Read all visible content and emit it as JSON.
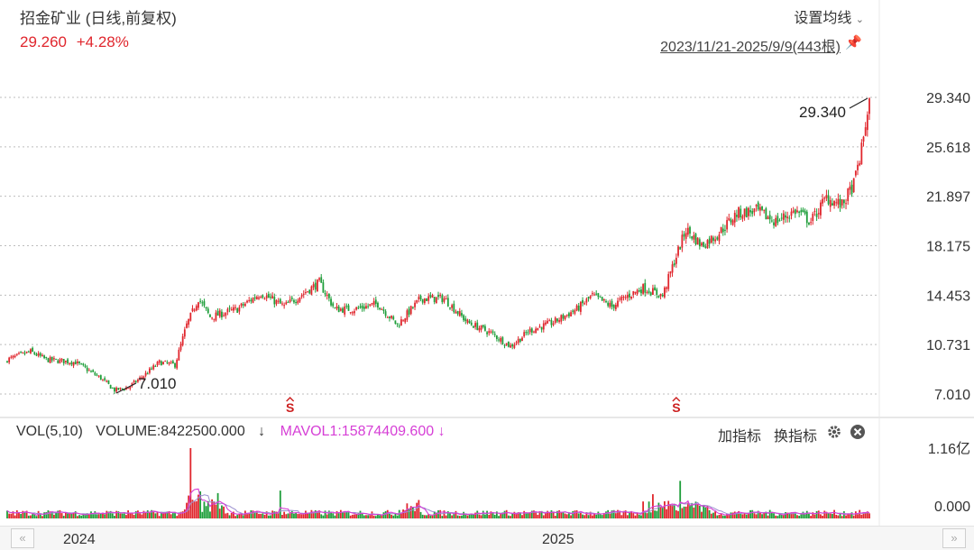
{
  "header": {
    "title": "招金矿业 (日线,前复权)",
    "price": "29.260",
    "change": "+4.28%",
    "ma_setting": "设置均线",
    "date_range": "2023/11/21-2025/9/9(443根)",
    "pin_icon": "pin-icon"
  },
  "volume_panel": {
    "label": "VOL(5,10)",
    "volume": "VOLUME:8422500.000",
    "mavol": "MAVOL1:15874409.600",
    "arrow": "↓",
    "add_indicator": "加指标",
    "switch_indicator": "换指标",
    "gear_icon": "gear-icon",
    "close_icon": "close-circle-icon"
  },
  "colors": {
    "up": "#e0262d",
    "down": "#1e9e3a",
    "mavol": "#d63fd6",
    "ma_line": "#a0a0a0",
    "grid": "#bdbdbd"
  },
  "chart_data": [
    {
      "type": "candlestick",
      "series_type": "daily",
      "y_axis_ticks": [
        "29.340",
        "25.618",
        "21.897",
        "18.175",
        "14.453",
        "10.731",
        "7.010"
      ],
      "ylim": [
        7.01,
        29.34
      ],
      "x_labels": [
        "2024",
        "2025"
      ],
      "annotations": [
        {
          "text": "29.340",
          "type": "period_high"
        },
        {
          "text": "7.010",
          "type": "period_low"
        }
      ],
      "markers": [
        "S",
        "S"
      ],
      "bars": 443,
      "close_path": [
        {
          "i": 0,
          "v": 9.6
        },
        {
          "i": 12,
          "v": 10.2
        },
        {
          "i": 20,
          "v": 9.6
        },
        {
          "i": 35,
          "v": 9.4
        },
        {
          "i": 48,
          "v": 8.2
        },
        {
          "i": 55,
          "v": 7.3
        },
        {
          "i": 62,
          "v": 7.5
        },
        {
          "i": 70,
          "v": 8.4
        },
        {
          "i": 78,
          "v": 9.4
        },
        {
          "i": 86,
          "v": 9.2
        },
        {
          "i": 92,
          "v": 12.2
        },
        {
          "i": 98,
          "v": 14.2
        },
        {
          "i": 104,
          "v": 12.8
        },
        {
          "i": 118,
          "v": 13.4
        },
        {
          "i": 130,
          "v": 14.6
        },
        {
          "i": 142,
          "v": 13.6
        },
        {
          "i": 152,
          "v": 14.6
        },
        {
          "i": 160,
          "v": 15.4
        },
        {
          "i": 168,
          "v": 13.4
        },
        {
          "i": 178,
          "v": 13.4
        },
        {
          "i": 190,
          "v": 13.8
        },
        {
          "i": 200,
          "v": 12.2
        },
        {
          "i": 212,
          "v": 14.2
        },
        {
          "i": 224,
          "v": 14.2
        },
        {
          "i": 236,
          "v": 12.4
        },
        {
          "i": 248,
          "v": 11.6
        },
        {
          "i": 258,
          "v": 10.6
        },
        {
          "i": 268,
          "v": 11.8
        },
        {
          "i": 280,
          "v": 12.4
        },
        {
          "i": 292,
          "v": 13.4
        },
        {
          "i": 300,
          "v": 14.4
        },
        {
          "i": 310,
          "v": 13.6
        },
        {
          "i": 318,
          "v": 14.4
        },
        {
          "i": 326,
          "v": 15.0
        },
        {
          "i": 336,
          "v": 14.4
        },
        {
          "i": 342,
          "v": 17.0
        },
        {
          "i": 348,
          "v": 19.4
        },
        {
          "i": 356,
          "v": 18.2
        },
        {
          "i": 364,
          "v": 19.0
        },
        {
          "i": 374,
          "v": 20.6
        },
        {
          "i": 384,
          "v": 20.8
        },
        {
          "i": 394,
          "v": 20.0
        },
        {
          "i": 404,
          "v": 20.8
        },
        {
          "i": 412,
          "v": 20.0
        },
        {
          "i": 420,
          "v": 21.8
        },
        {
          "i": 428,
          "v": 21.2
        },
        {
          "i": 434,
          "v": 22.8
        },
        {
          "i": 438,
          "v": 25.4
        },
        {
          "i": 442,
          "v": 29.2
        }
      ],
      "volume_axis_ticks": [
        "1.16亿",
        "0.000"
      ],
      "volume_ylim": [
        0,
        116000000
      ]
    }
  ]
}
